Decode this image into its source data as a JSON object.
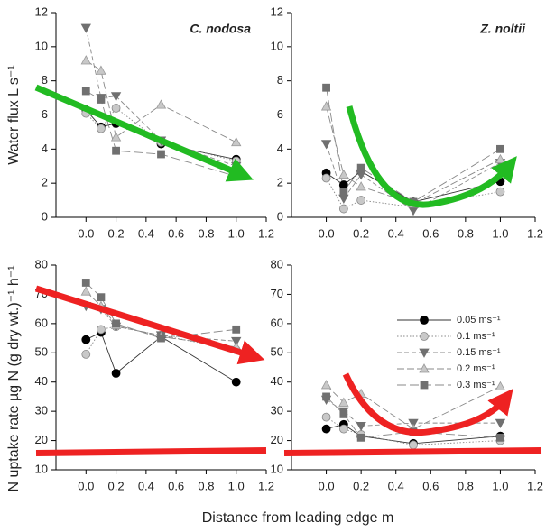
{
  "chart_data": [
    {
      "type": "line",
      "title": "C. nodosa",
      "ylabel": "Water flux   L s⁻¹",
      "x": [
        0,
        0.1,
        0.2,
        0.5,
        1.0
      ],
      "xlim": [
        -0.2,
        1.2
      ],
      "xticks": [
        {
          "value": 0,
          "label": "0.0"
        },
        0.2,
        0.4,
        0.6,
        0.8,
        {
          "value": 1,
          "label": "1.0"
        },
        1.2
      ],
      "ylim": [
        0,
        12
      ],
      "yticks": [
        0,
        2,
        4,
        6,
        8,
        10,
        12
      ],
      "series": [
        {
          "color": "#000000",
          "marker": "circle",
          "values": [
            6.3,
            5.3,
            5.5,
            4.3,
            3.4
          ]
        },
        {
          "color": "#c8c8c8",
          "marker": "circle",
          "values": [
            6.1,
            5.2,
            6.4,
            4.4,
            3.3
          ]
        },
        {
          "color": "#707070",
          "marker": "triangle-down",
          "values": [
            11.1,
            7.0,
            7.1,
            4.5,
            3.0
          ]
        },
        {
          "color": "#c8c8c8",
          "marker": "triangle-up",
          "values": [
            9.2,
            8.6,
            4.7,
            6.6,
            4.4
          ]
        },
        {
          "color": "#707070",
          "marker": "square",
          "values": [
            7.4,
            6.9,
            3.9,
            3.7,
            2.4
          ]
        }
      ],
      "arrow_color": "#22bb22"
    },
    {
      "type": "line",
      "title": "Z. noltii",
      "x": [
        0,
        0.1,
        0.2,
        0.5,
        1.0
      ],
      "xlim": [
        -0.2,
        1.2
      ],
      "xticks": [
        {
          "value": 0,
          "label": "0.0"
        },
        0.2,
        0.4,
        0.6,
        0.8,
        {
          "value": 1,
          "label": "1.0"
        },
        1.2
      ],
      "ylim": [
        0,
        12
      ],
      "yticks": [
        0,
        2,
        4,
        6,
        8,
        10,
        12
      ],
      "series": [
        {
          "color": "#000000",
          "marker": "circle",
          "values": [
            2.6,
            1.9,
            2.7,
            0.9,
            2.1
          ]
        },
        {
          "color": "#c8c8c8",
          "marker": "circle",
          "values": [
            2.3,
            0.5,
            1.0,
            0.6,
            1.5
          ]
        },
        {
          "color": "#707070",
          "marker": "triangle-down",
          "values": [
            4.3,
            1.1,
            2.5,
            0.4,
            3.2
          ]
        },
        {
          "color": "#c8c8c8",
          "marker": "triangle-up",
          "values": [
            6.5,
            2.5,
            1.8,
            0.8,
            3.4
          ]
        },
        {
          "color": "#707070",
          "marker": "square",
          "values": [
            7.6,
            1.5,
            2.9,
            0.9,
            4.0
          ]
        }
      ],
      "arrow_color": "#22bb22"
    },
    {
      "type": "line",
      "ylabel": "N uptake rate µg N (g dry wt.)⁻¹ h⁻¹",
      "xlabel": "Distance from leading edge m",
      "x": [
        0,
        0.1,
        0.2,
        0.5,
        1.0
      ],
      "xlim": [
        -0.2,
        1.2
      ],
      "xticks": [
        {
          "value": 0,
          "label": "0.0"
        },
        0.2,
        0.4,
        0.6,
        0.8,
        {
          "value": 1,
          "label": "1.0"
        },
        1.2
      ],
      "ylim": [
        10,
        80
      ],
      "yticks": [
        10,
        20,
        30,
        40,
        50,
        60,
        70,
        80
      ],
      "hline": 16,
      "series": [
        {
          "color": "#000000",
          "marker": "circle",
          "values": [
            54.5,
            57,
            43,
            55.5,
            40
          ]
        },
        {
          "color": "#c8c8c8",
          "marker": "circle",
          "values": [
            49.5,
            58,
            59,
            56,
            51
          ]
        },
        {
          "color": "#707070",
          "marker": "triangle-down",
          "values": [
            66,
            65,
            59,
            56,
            54
          ]
        },
        {
          "color": "#c8c8c8",
          "marker": "triangle-up",
          "values": [
            71,
            66,
            59.5,
            55.5,
            52
          ]
        },
        {
          "color": "#707070",
          "marker": "square",
          "values": [
            74,
            69,
            60,
            55,
            58
          ]
        }
      ],
      "arrow_color": "#ee2222"
    },
    {
      "type": "line",
      "x": [
        0,
        0.1,
        0.2,
        0.5,
        1.0
      ],
      "xlim": [
        -0.2,
        1.2
      ],
      "xticks": [
        {
          "value": 0,
          "label": "0.0"
        },
        0.2,
        0.4,
        0.6,
        0.8,
        {
          "value": 1,
          "label": "1.0"
        },
        1.2
      ],
      "ylim": [
        10,
        80
      ],
      "yticks": [
        10,
        20,
        30,
        40,
        50,
        60,
        70,
        80
      ],
      "hline": 16,
      "legend": "upper right",
      "series": [
        {
          "name": "0.05 ms⁻¹",
          "color": "#000000",
          "marker": "circle",
          "values": [
            24,
            25.5,
            21.5,
            19,
            21.5
          ]
        },
        {
          "name": "0.1 ms⁻¹",
          "color": "#c8c8c8",
          "marker": "circle",
          "values": [
            28,
            24,
            22,
            18.5,
            20
          ]
        },
        {
          "name": "0.15 ms⁻¹",
          "color": "#707070",
          "marker": "triangle-down",
          "values": [
            34,
            30,
            25,
            26,
            26
          ]
        },
        {
          "name": "0.2 ms⁻¹",
          "color": "#c8c8c8",
          "marker": "triangle-up",
          "values": [
            39,
            33,
            36,
            24,
            38.5
          ]
        },
        {
          "name": "0.3 ms⁻¹",
          "color": "#707070",
          "marker": "square",
          "values": [
            35,
            29,
            21,
            23,
            21
          ]
        }
      ],
      "arrow_color": "#ee2222"
    }
  ]
}
